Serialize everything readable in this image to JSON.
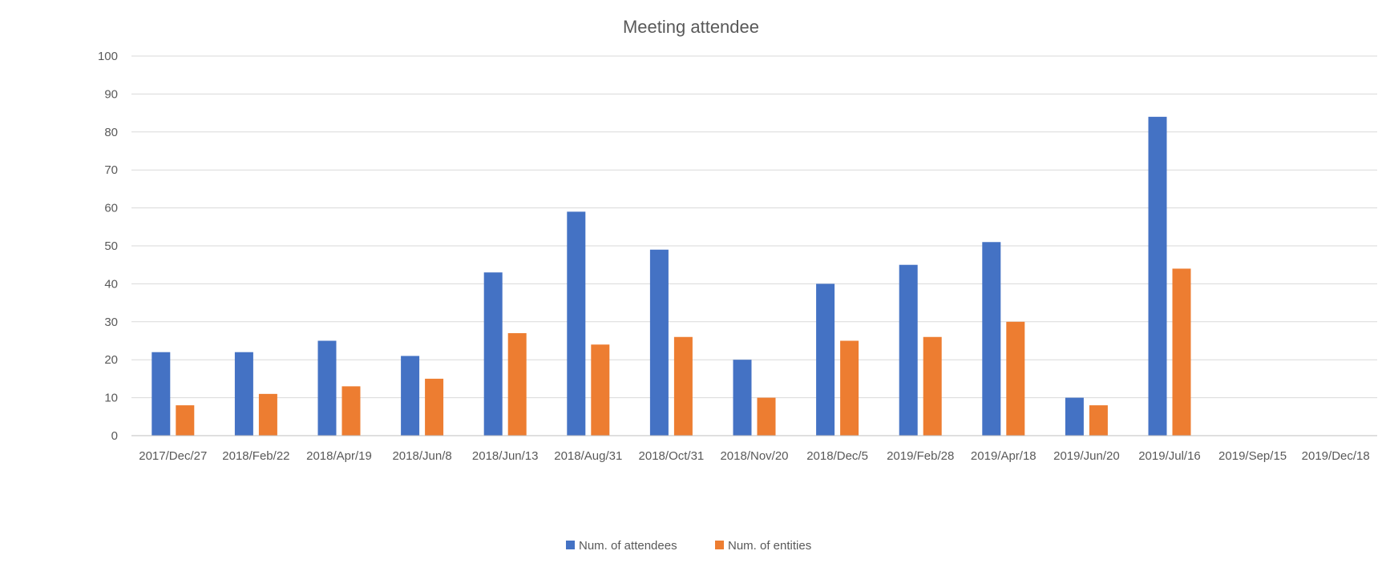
{
  "chart_data": {
    "type": "bar",
    "title": "Meeting attendee",
    "xlabel": "",
    "ylabel": "",
    "ylim": [
      0,
      100
    ],
    "ytick_step": 10,
    "grid": true,
    "legend_position": "bottom",
    "categories": [
      "2017/Dec/27",
      "2018/Feb/22",
      "2018/Apr/19",
      "2018/Jun/8",
      "2018/Jun/13",
      "2018/Aug/31",
      "2018/Oct/31",
      "2018/Nov/20",
      "2018/Dec/5",
      "2019/Feb/28",
      "2019/Apr/18",
      "2019/Jun/20",
      "2019/Jul/16",
      "2019/Sep/15",
      "2019/Dec/18"
    ],
    "series": [
      {
        "name": "Num. of attendees",
        "color": "#4472c4",
        "values": [
          22,
          22,
          25,
          21,
          43,
          59,
          49,
          20,
          40,
          45,
          51,
          10,
          84,
          null,
          null
        ]
      },
      {
        "name": "Num. of entities",
        "color": "#ed7d31",
        "values": [
          8,
          11,
          13,
          15,
          27,
          24,
          26,
          10,
          25,
          26,
          30,
          8,
          44,
          null,
          null
        ]
      }
    ]
  }
}
